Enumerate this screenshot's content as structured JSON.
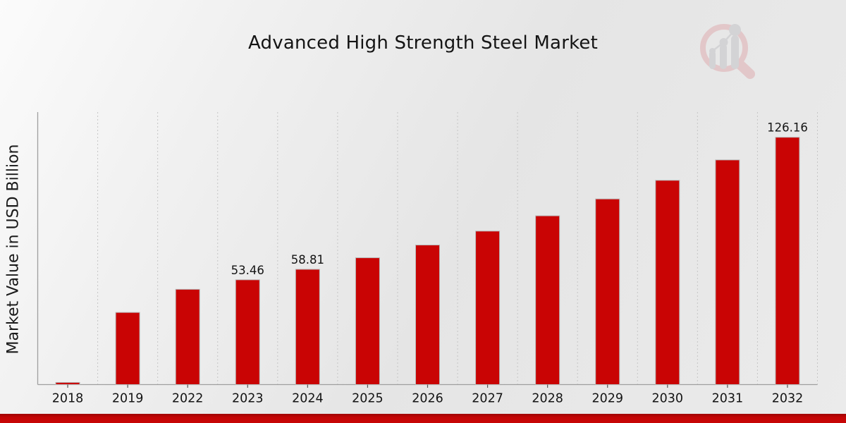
{
  "title": "Advanced High Strength Steel Market",
  "ylabel": "Market Value in USD Billion",
  "colors": {
    "bar": "#c90404",
    "bar_edge": "#b8b8b8",
    "grid": "#c6c6c6",
    "axis": "#9f9f9f",
    "tick": "#555555",
    "label_text": "#1f1f1f",
    "banner_red": "#c40505"
  },
  "watermark_icon": "magnifier-growth-chart-logo",
  "chart_data": {
    "type": "bar",
    "title": "Advanced High Strength Steel Market",
    "xlabel": "",
    "ylabel": "Market Value in USD Billion",
    "categories": [
      "2018",
      "2019",
      "2022",
      "2023",
      "2024",
      "2025",
      "2026",
      "2027",
      "2028",
      "2029",
      "2030",
      "2031",
      "2032"
    ],
    "values": [
      1.1,
      36.8,
      48.6,
      53.46,
      58.81,
      64.7,
      71.2,
      78.3,
      86.1,
      94.7,
      104.2,
      114.6,
      126.16
    ],
    "data_labels": {
      "2023": "53.46",
      "2024": "58.81",
      "2032": "126.16"
    },
    "ylim": [
      0,
      139
    ],
    "y_ticks_shown": false,
    "grid": "vertical-dashed",
    "legend": "none",
    "bar_color": "#c90404"
  }
}
